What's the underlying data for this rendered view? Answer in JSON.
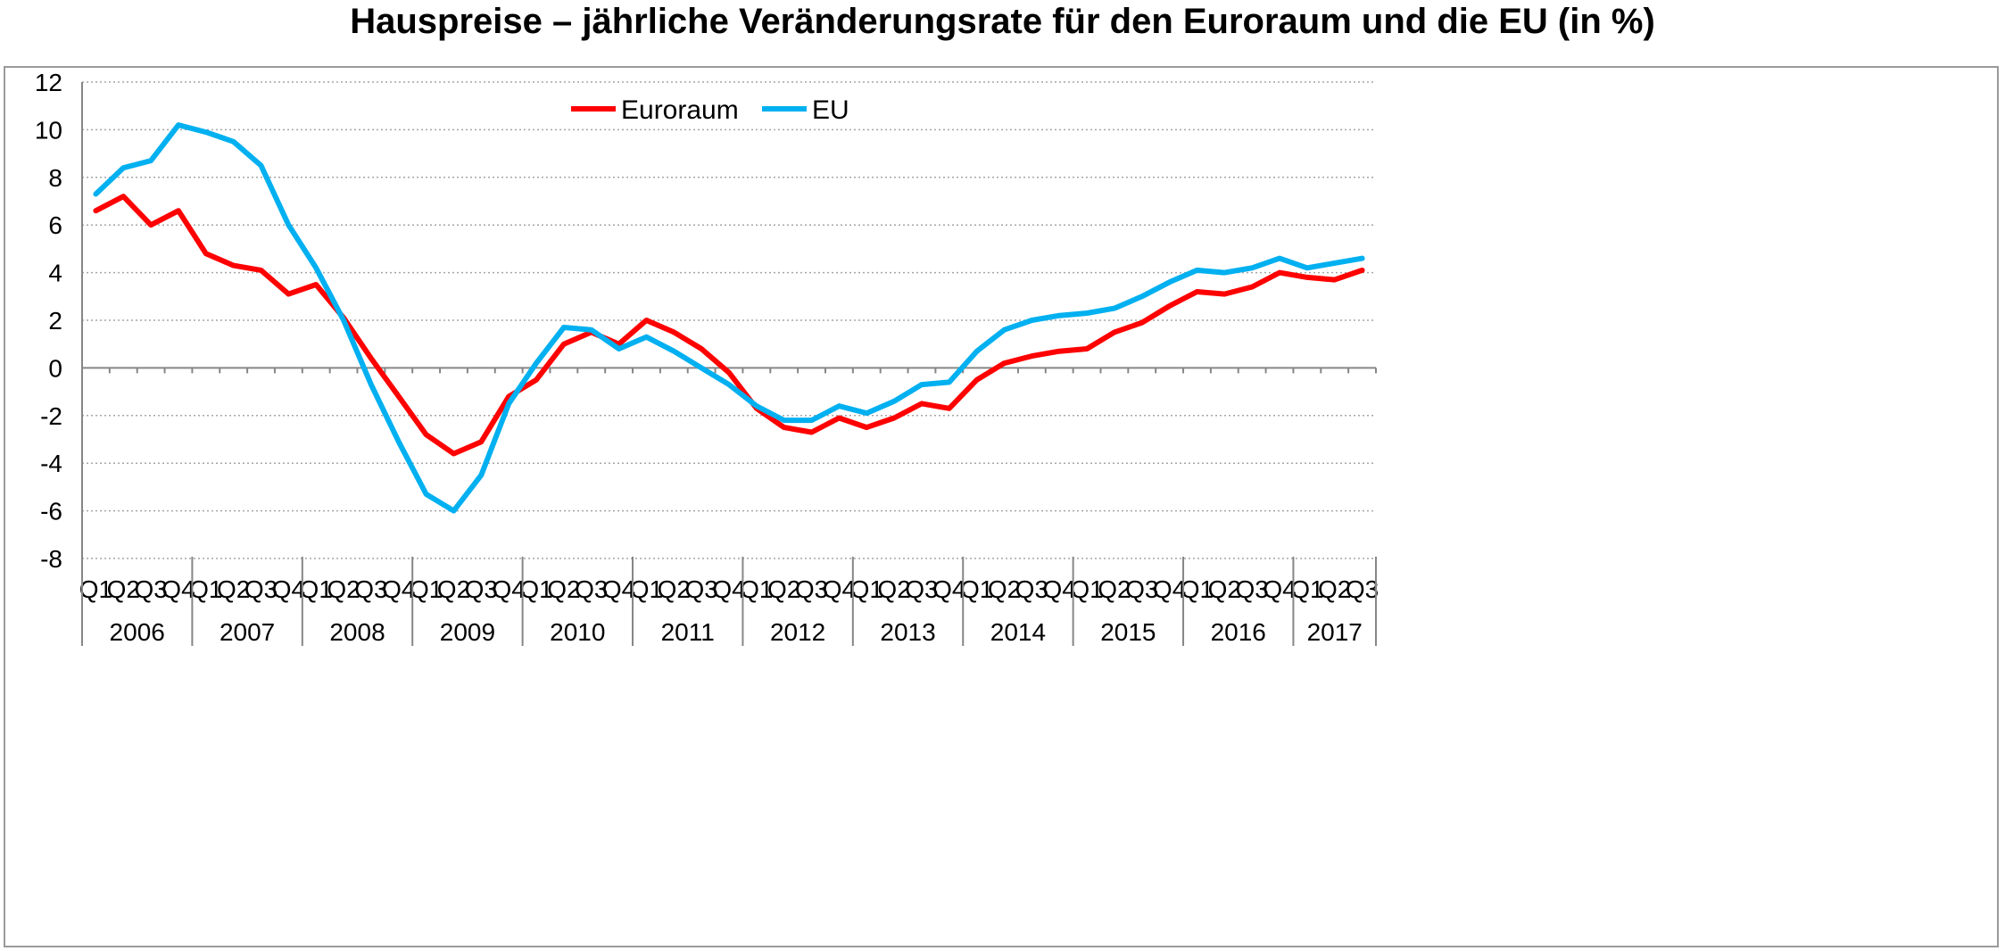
{
  "chart_data": {
    "type": "line",
    "title": "Hauspreise – jährliche Veränderungsrate für den Euroraum und die EU (in %)",
    "xlabel": "",
    "ylabel": "",
    "ylim": [
      -8,
      12
    ],
    "yticks": [
      12,
      10,
      8,
      6,
      4,
      2,
      0,
      -2,
      -4,
      -6,
      -8
    ],
    "grid": true,
    "legend_position": "top-center",
    "years": [
      "2006",
      "2007",
      "2008",
      "2009",
      "2010",
      "2011",
      "2012",
      "2013",
      "2014",
      "2015",
      "2016",
      "2017"
    ],
    "categories": [
      "Q1",
      "Q2",
      "Q3",
      "Q4",
      "Q1",
      "Q2",
      "Q3",
      "Q4",
      "Q1",
      "Q2",
      "Q3",
      "Q4",
      "Q1",
      "Q2",
      "Q3",
      "Q4",
      "Q1",
      "Q2",
      "Q3",
      "Q4",
      "Q1",
      "Q2",
      "Q3",
      "Q4",
      "Q1",
      "Q2",
      "Q3",
      "Q4",
      "Q1",
      "Q2",
      "Q3",
      "Q4",
      "Q1",
      "Q2",
      "Q3",
      "Q4",
      "Q1",
      "Q2",
      "Q3",
      "Q4",
      "Q1",
      "Q2",
      "Q3",
      "Q4",
      "Q1",
      "Q2",
      "Q3"
    ],
    "series": [
      {
        "name": "Euroraum",
        "color": "#ff0000",
        "values": [
          6.6,
          7.2,
          6.0,
          6.6,
          4.8,
          4.3,
          4.1,
          3.1,
          3.5,
          2.1,
          0.4,
          -1.2,
          -2.8,
          -3.6,
          -3.1,
          -1.2,
          -0.5,
          1.0,
          1.5,
          1.0,
          2.0,
          1.5,
          0.8,
          -0.2,
          -1.7,
          -2.5,
          -2.7,
          -2.1,
          -2.5,
          -2.1,
          -1.5,
          -1.7,
          -0.5,
          0.2,
          0.5,
          0.7,
          0.8,
          1.5,
          1.9,
          2.6,
          3.2,
          3.1,
          3.4,
          4.0,
          3.8,
          3.7,
          4.1
        ]
      },
      {
        "name": "EU",
        "color": "#00b0f0",
        "values": [
          7.3,
          8.4,
          8.7,
          10.2,
          9.9,
          9.5,
          8.5,
          6.0,
          4.2,
          2.0,
          -0.7,
          -3.1,
          -5.3,
          -6.0,
          -4.5,
          -1.5,
          0.2,
          1.7,
          1.6,
          0.8,
          1.3,
          0.7,
          0.0,
          -0.7,
          -1.6,
          -2.2,
          -2.2,
          -1.6,
          -1.9,
          -1.4,
          -0.7,
          -0.6,
          0.7,
          1.6,
          2.0,
          2.2,
          2.3,
          2.5,
          3.0,
          3.6,
          4.1,
          4.0,
          4.2,
          4.6,
          4.2,
          4.4,
          4.6
        ]
      }
    ]
  }
}
